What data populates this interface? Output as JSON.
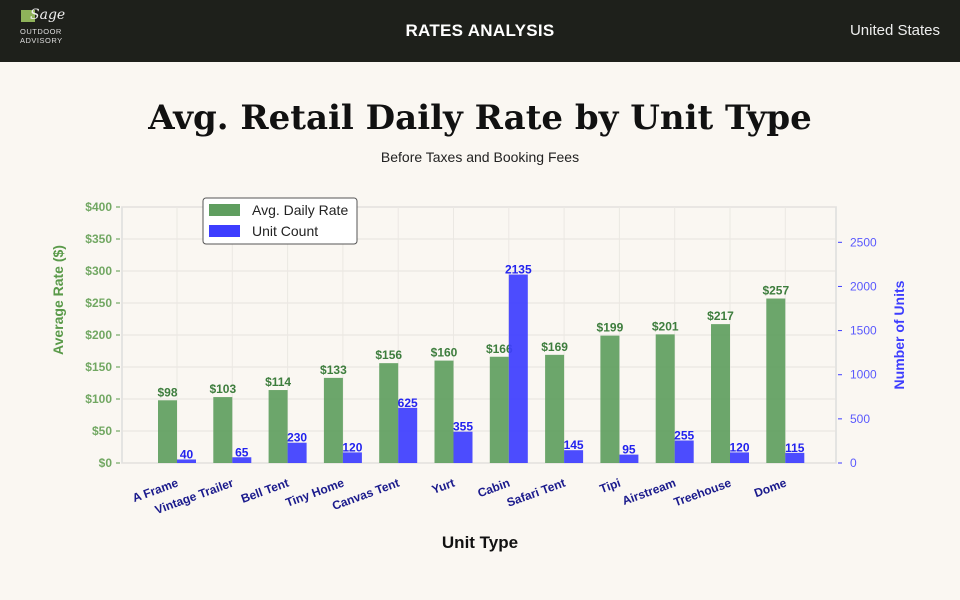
{
  "header": {
    "logo_text": "Sage Outdoor Advisory",
    "logo_line1": "Sage",
    "logo_line2": "OUTDOOR",
    "logo_line3": "ADVISORY",
    "title": "RATES ANALYSIS",
    "region": "United States"
  },
  "chart_data": {
    "type": "bar",
    "title": "Avg. Retail Daily Rate by Unit Type",
    "subtitle": "Before Taxes and Booking Fees",
    "xlabel": "Unit Type",
    "ylabel": "Average Rate ($)",
    "y2label": "Number of Units",
    "categories": [
      "A Frame",
      "Vintage Trailer",
      "Bell Tent",
      "Tiny Home",
      "Canvas Tent",
      "Yurt",
      "Cabin",
      "Safari Tent",
      "Tipi",
      "Airstream",
      "Treehouse",
      "Dome"
    ],
    "series": [
      {
        "name": "Avg. Daily Rate",
        "axis": "left",
        "color": "#5f9e5f",
        "values": [
          98,
          103,
          114,
          133,
          156,
          160,
          166,
          169,
          199,
          201,
          217,
          257
        ],
        "labels": [
          "$98",
          "$103",
          "$114",
          "$133",
          "$156",
          "$160",
          "$166",
          "$169",
          "$199",
          "$201",
          "$217",
          "$257"
        ]
      },
      {
        "name": "Unit Count",
        "axis": "right",
        "color": "#3d3dff",
        "values": [
          40,
          65,
          230,
          120,
          625,
          355,
          2135,
          145,
          95,
          255,
          120,
          115
        ],
        "labels": [
          "40",
          "65",
          "230",
          "120",
          "625",
          "355",
          "2135",
          "145",
          "95",
          "255",
          "120",
          "115"
        ]
      }
    ],
    "ylim": [
      0,
      400
    ],
    "y_ticks": [
      "$0",
      "$50",
      "$100",
      "$150",
      "$200",
      "$250",
      "$300",
      "$350",
      "$400"
    ],
    "y2lim": [
      0,
      2900
    ],
    "y2_ticks": [
      "0",
      "500",
      "1000",
      "1500",
      "2000",
      "2500"
    ],
    "grid": true,
    "legend": "top-left",
    "colors": {
      "left_axis": "#5a9a4a",
      "right_axis": "#3d3dff",
      "category_label": "#1a1a8c"
    }
  }
}
